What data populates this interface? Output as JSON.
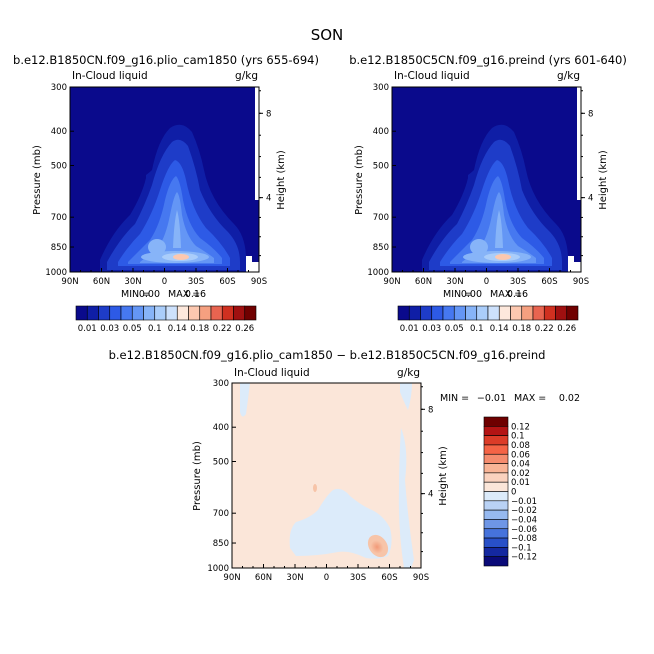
{
  "figure_title": "SON",
  "chart_data": [
    {
      "type": "heatmap",
      "title": "b.e12.B1850CN.f09_g16.plio_cam1850 (yrs 655-694)",
      "left_label": "In-Cloud liquid",
      "right_label": "g/kg",
      "ylabel": "Pressure (mb)",
      "ylabel_right": "Height (km)",
      "x_ticks": [
        "90N",
        "60N",
        "30N",
        "0",
        "30S",
        "60S",
        "90S"
      ],
      "y_ticks": [
        "300",
        "400",
        "500",
        "700",
        "850",
        "1000"
      ],
      "y_right_ticks": [
        "8",
        "4"
      ],
      "min_label": "MIN =",
      "min_value": "0.00",
      "max_label": "MAX =",
      "max_value": "0.16",
      "colorbar_labels": [
        "0.01",
        "0.03",
        "0.05",
        "0.1",
        "0.14",
        "0.18",
        "0.22",
        "0.26"
      ]
    },
    {
      "type": "heatmap",
      "title": "b.e12.B1850C5CN.f09_g16.preind (yrs 601-640)",
      "left_label": "In-Cloud liquid",
      "right_label": "g/kg",
      "ylabel": "Pressure (mb)",
      "ylabel_right": "Height (km)",
      "x_ticks": [
        "90N",
        "60N",
        "30N",
        "0",
        "30S",
        "60S",
        "90S"
      ],
      "y_ticks": [
        "300",
        "400",
        "500",
        "700",
        "850",
        "1000"
      ],
      "y_right_ticks": [
        "8",
        "4"
      ],
      "min_label": "MIN =",
      "min_value": "0.00",
      "max_label": "MAX =",
      "max_value": "0.16",
      "colorbar_labels": [
        "0.01",
        "0.03",
        "0.05",
        "0.1",
        "0.14",
        "0.18",
        "0.22",
        "0.26"
      ]
    },
    {
      "type": "heatmap",
      "title": "b.e12.B1850CN.f09_g16.plio_cam1850 − b.e12.B1850C5CN.f09_g16.preind",
      "left_label": "In-Cloud liquid",
      "right_label": "g/kg",
      "ylabel": "Pressure (mb)",
      "ylabel_right": "Height (km)",
      "x_ticks": [
        "90N",
        "60N",
        "30N",
        "0",
        "30S",
        "60S",
        "90S"
      ],
      "y_ticks": [
        "300",
        "400",
        "500",
        "700",
        "850",
        "1000"
      ],
      "y_right_ticks": [
        "8",
        "4"
      ],
      "min_label": "MIN =",
      "min_value": "−0.01",
      "max_label": "MAX =",
      "max_value": "0.02",
      "colorbar_labels": [
        "0.12",
        "0.1",
        "0.08",
        "0.06",
        "0.04",
        "0.02",
        "0.01",
        "0",
        "−0.01",
        "−0.02",
        "−0.04",
        "−0.06",
        "−0.08",
        "−0.1",
        "−0.12"
      ]
    }
  ],
  "colors": {
    "abs_scale": [
      "#0a0a8c",
      "#0f1ea6",
      "#1e3cc8",
      "#2d5ae6",
      "#4678f0",
      "#6496f5",
      "#87b4f8",
      "#aacdfa",
      "#cde1fc",
      "#fde8dc",
      "#fcc8b0",
      "#f5a080",
      "#e86450",
      "#d03020",
      "#a01010",
      "#700000"
    ],
    "diff_scale": [
      "#6e0000",
      "#b41414",
      "#dc3c28",
      "#f56446",
      "#f58c6e",
      "#f8b496",
      "#fad2be",
      "#fbe6d9",
      "#dcebfa",
      "#b9d2f5",
      "#96b9f0",
      "#6e96e6",
      "#4673dc",
      "#2850c8",
      "#1428a0",
      "#0a0a78"
    ]
  }
}
